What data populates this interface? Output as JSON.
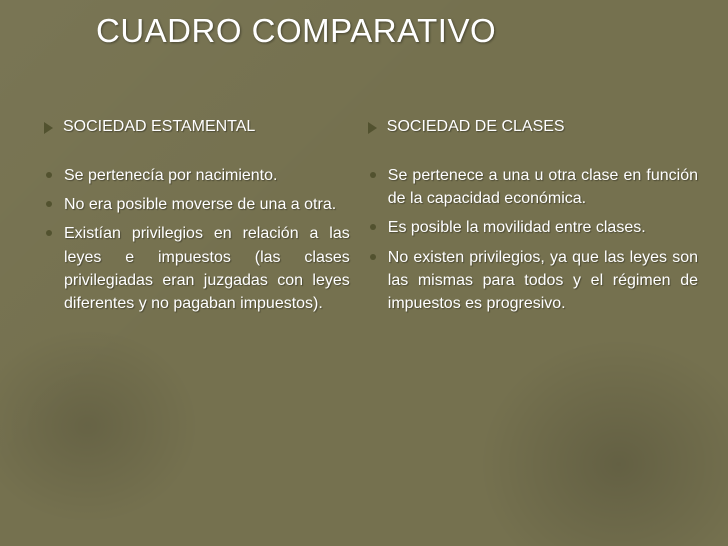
{
  "title": "CUADRO COMPARATIVO",
  "colors": {
    "background": "#75714f",
    "text": "#ffffff",
    "bullet": "#52522f"
  },
  "left": {
    "header": "SOCIEDAD ESTAMENTAL",
    "items": [
      "Se pertenecía por nacimiento.",
      "No era posible moverse de una a otra.",
      "Existían privilegios en relación a las leyes e impuestos (las clases privilegiadas eran juzgadas con leyes diferentes y no pagaban impuestos)."
    ]
  },
  "right": {
    "header": "SOCIEDAD DE CLASES",
    "items": [
      "Se pertenece a una u otra clase en función de la capacidad económica.",
      "Es posible la movilidad entre clases.",
      "No existen privilegios, ya que las leyes son las mismas para todos y el régimen de impuestos es progresivo."
    ]
  }
}
